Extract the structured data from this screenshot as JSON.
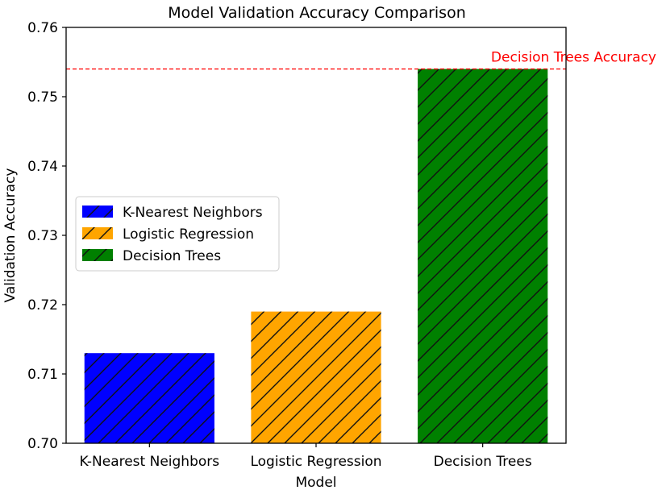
{
  "chart_data": {
    "type": "bar",
    "title": "Model Validation Accuracy Comparison",
    "xlabel": "Model",
    "ylabel": "Validation Accuracy",
    "categories": [
      "K-Nearest Neighbors",
      "Logistic Regression",
      "Decision Trees"
    ],
    "values": [
      0.713,
      0.719,
      0.754
    ],
    "colors": [
      "#0000ff",
      "#ffa500",
      "#008000"
    ],
    "hatch": "diagonal",
    "ylim": [
      0.7,
      0.76
    ],
    "yticks": [
      "0.70",
      "0.71",
      "0.72",
      "0.73",
      "0.74",
      "0.75",
      "0.76"
    ],
    "grid": false,
    "legend": {
      "position": "center-left",
      "entries": [
        "K-Nearest Neighbors",
        "Logistic Regression",
        "Decision Trees"
      ]
    },
    "reference_line": {
      "value": 0.754,
      "label": "Decision Trees Accuracy",
      "color": "#ff0000",
      "style": "dashed"
    }
  }
}
